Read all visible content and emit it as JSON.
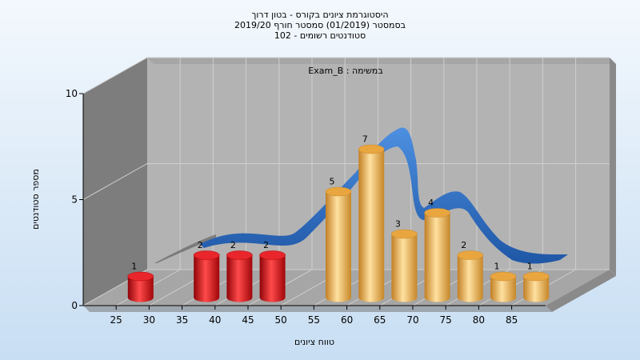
{
  "chart_data": {
    "type": "bar",
    "title_lines": [
      "היסטוגרמת ציונים בקורס - בטון דרוך",
      "בסמסטר  (01/2019)  סמסטר חורף 2019/20",
      "סטודנטים רשומים - 102"
    ],
    "annotation": "במשימה : Exam_B",
    "xlabel": "טווח ציונים",
    "ylabel": "מספר סטודנטים",
    "x_ticks": [
      "25",
      "30",
      "35",
      "40",
      "45",
      "50",
      "55",
      "60",
      "65",
      "70",
      "75",
      "80",
      "85"
    ],
    "y_ticks": [
      0,
      5,
      10
    ],
    "ylim": [
      0,
      10
    ],
    "categories": [
      "25",
      "35",
      "40",
      "45",
      "55",
      "60",
      "65",
      "70",
      "75",
      "80",
      "85"
    ],
    "values": [
      1,
      2,
      2,
      2,
      5,
      7,
      3,
      4,
      2,
      1,
      1
    ],
    "bar_colors": [
      "#e0161c",
      "#e0161c",
      "#e0161c",
      "#e0161c",
      "#e8a43c",
      "#e8a43c",
      "#e8a43c",
      "#e8a43c",
      "#e8a43c",
      "#e8a43c",
      "#e8a43c"
    ],
    "curve": {
      "type": "line",
      "color": "#2f6fc4",
      "shape": "smoothed ribbon over bars"
    },
    "grid": true,
    "colors": {
      "low": "#e0161c",
      "pass": "#e8a43c",
      "curve": "#2f6fc4",
      "wall": "#b3b3b3"
    }
  }
}
